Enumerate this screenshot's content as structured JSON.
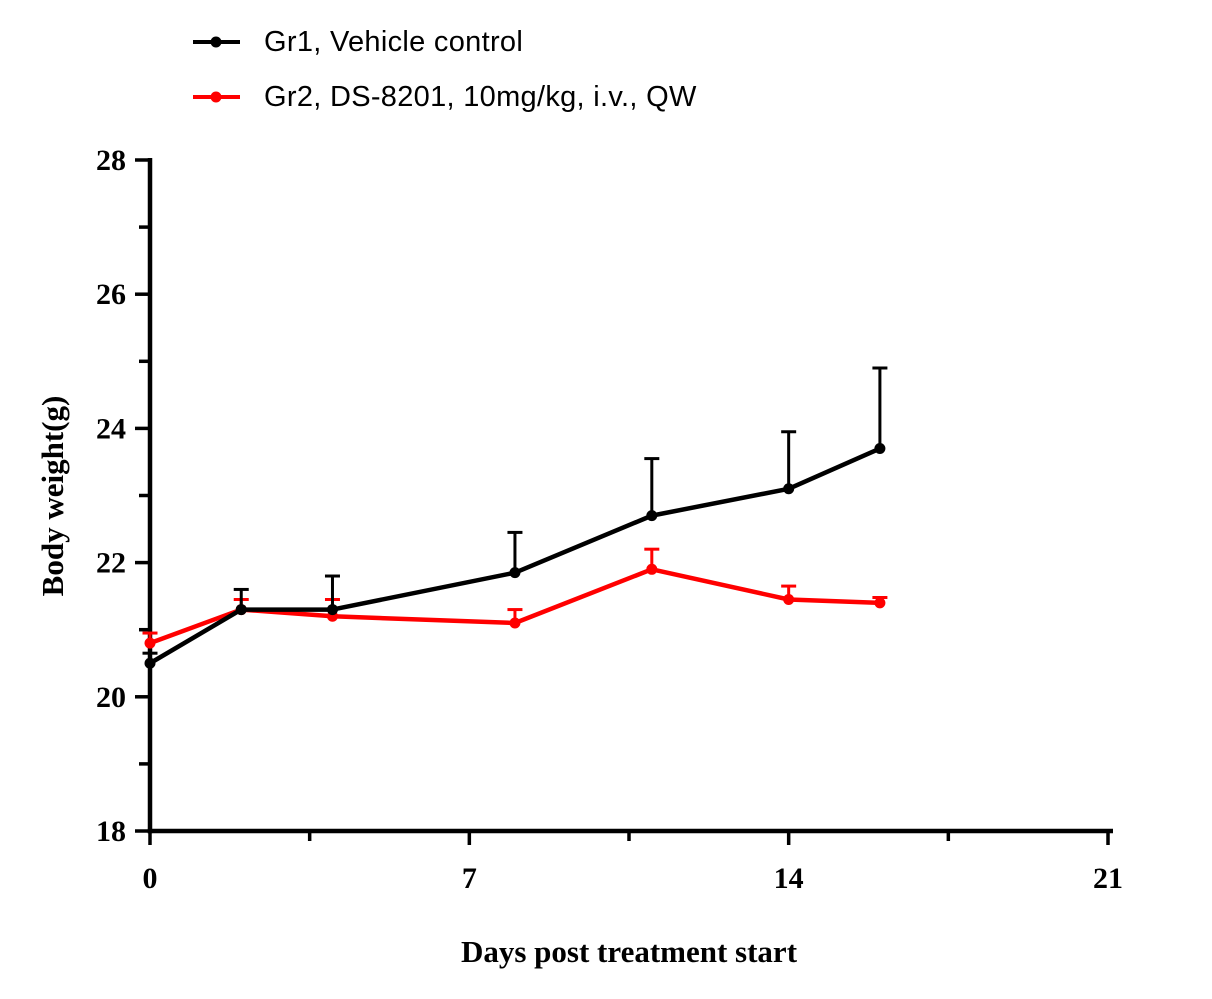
{
  "page": {
    "background": "#ffffff"
  },
  "chart_data": {
    "type": "line",
    "title": "",
    "xlabel": "Days post treatment start",
    "ylabel": "Body weight(g)",
    "xlim": [
      0,
      21
    ],
    "ylim": [
      18,
      28
    ],
    "x_major_ticks": [
      0,
      7,
      14,
      21
    ],
    "x_minor_ticks": [
      3.5,
      10.5,
      17.5
    ],
    "y_major_ticks": [
      18,
      20,
      22,
      24,
      26,
      28
    ],
    "y_minor_ticks": [
      19,
      21,
      23,
      25,
      27
    ],
    "grid": false,
    "legend_position": "top-left",
    "error_bar_direction": "up",
    "axis_color": "#000000",
    "x": [
      0,
      2,
      4,
      8,
      11,
      14,
      16
    ],
    "series": [
      {
        "name": "Gr1, Vehicle control",
        "color": "#000000",
        "marker": "filled-circle",
        "values": [
          20.5,
          21.3,
          21.3,
          21.85,
          22.7,
          23.1,
          23.7
        ],
        "errors_up": [
          0.15,
          0.3,
          0.5,
          0.6,
          0.85,
          0.85,
          1.2
        ]
      },
      {
        "name": "Gr2, DS-8201, 10mg/kg, i.v., QW",
        "color": "#ff0000",
        "marker": "filled-circle",
        "values": [
          20.8,
          21.3,
          21.2,
          21.1,
          21.9,
          21.45,
          21.4
        ],
        "errors_up": [
          0.15,
          0.15,
          0.25,
          0.2,
          0.3,
          0.2,
          0.08
        ]
      }
    ]
  }
}
